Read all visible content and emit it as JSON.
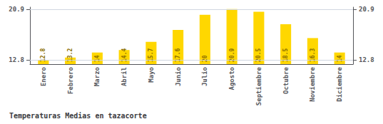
{
  "chart_data": {
    "type": "bar",
    "title": "Temperaturas Medias en tazacorte",
    "categories": [
      "Enero",
      "Febrero",
      "Marzo",
      "Abril",
      "Mayo",
      "Junio",
      "Julio",
      "Agosto",
      "Septiembre",
      "Octubre",
      "Noviembre",
      "Diciembre"
    ],
    "values": [
      12.8,
      13.2,
      14.0,
      14.4,
      15.7,
      17.6,
      20.0,
      20.9,
      20.5,
      18.5,
      16.3,
      14.0
    ],
    "color": "#FFD700",
    "ylim": [
      12.152,
      21.224
    ],
    "yticks": [
      12.8,
      20.9
    ],
    "y2lim": [
      12.152,
      21.224
    ],
    "y2ticks": [
      12.8,
      20.9
    ],
    "grid": true,
    "data_labels": true
  }
}
